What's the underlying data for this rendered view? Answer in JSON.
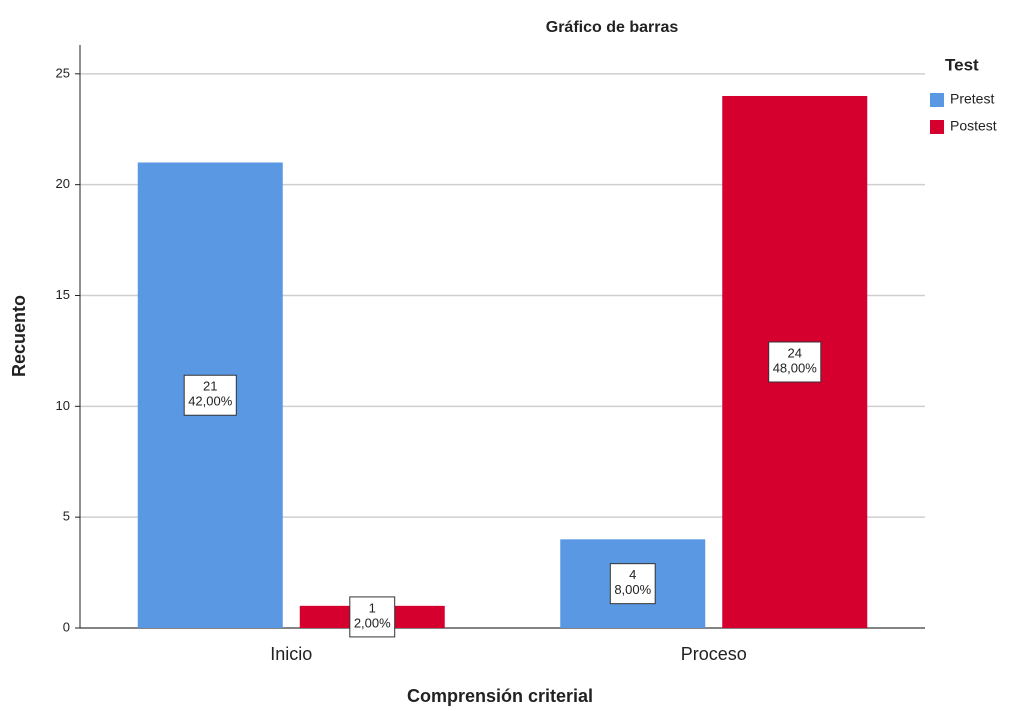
{
  "chart_data": {
    "type": "bar",
    "title": "Gráfico de barras",
    "x_label": "Comprensión criterial",
    "y_label": "Recuento",
    "legend_title": "Test",
    "legend_position": "right",
    "categories": [
      "Inicio",
      "Proceso"
    ],
    "series": [
      {
        "name": "Pretest",
        "color": "#5a98e3",
        "values": [
          21,
          4
        ],
        "percent_labels": [
          "42,00%",
          "8,00%"
        ]
      },
      {
        "name": "Postest",
        "color": "#d6002f",
        "values": [
          1,
          24
        ],
        "percent_labels": [
          "2,00%",
          "48,00%"
        ]
      }
    ],
    "ylim": [
      0,
      26.3
    ],
    "yticks": [
      0,
      5,
      10,
      15,
      20,
      25
    ],
    "grid": true
  }
}
